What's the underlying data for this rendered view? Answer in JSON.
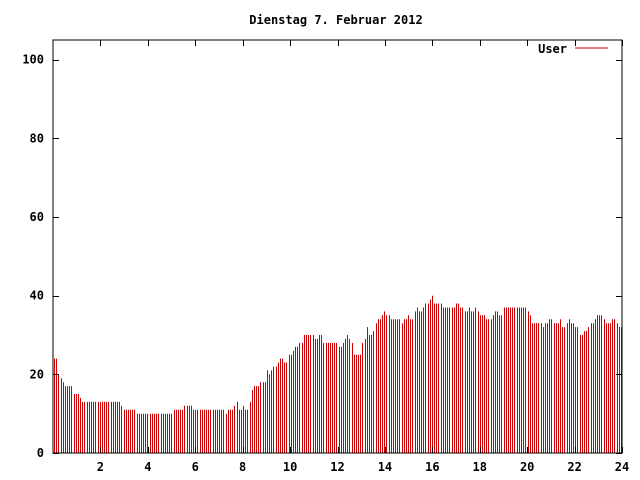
{
  "chart_data": {
    "type": "bar",
    "title": "Dienstag 7. Februar 2012",
    "xlabel": "",
    "ylabel": "",
    "xlim": [
      0,
      24
    ],
    "ylim": [
      0,
      105
    ],
    "grid": false,
    "legend_position": "top-right",
    "x_ticks": [
      "2",
      "4",
      "6",
      "8",
      "10",
      "12",
      "14",
      "16",
      "18",
      "20",
      "22",
      "24"
    ],
    "y_ticks": [
      "0",
      "20",
      "40",
      "60",
      "80",
      "100"
    ],
    "series": [
      {
        "name": "User",
        "color": "#cc0000",
        "values": [
          24,
          24,
          20,
          19,
          18,
          17,
          17,
          17,
          17,
          15,
          15,
          15,
          14,
          13,
          13,
          13,
          13,
          13,
          13,
          13,
          13,
          13,
          13,
          13,
          13,
          13,
          13,
          13,
          13,
          13,
          13,
          12,
          11,
          11,
          11,
          11,
          11,
          11,
          10,
          10,
          10,
          10,
          10,
          10,
          10,
          10,
          10,
          10,
          10,
          10,
          10,
          10,
          10,
          10,
          10,
          11,
          11,
          11,
          11,
          11,
          12,
          12,
          12,
          12,
          11,
          11,
          11,
          11,
          11,
          11,
          11,
          11,
          11,
          11,
          11,
          11,
          11,
          11,
          11,
          10,
          11,
          11,
          11,
          12,
          13,
          11,
          11,
          12,
          11,
          11,
          13,
          16,
          17,
          17,
          17,
          18,
          18,
          18,
          21,
          20,
          21,
          22,
          22,
          23,
          24,
          24,
          23,
          23,
          25,
          25,
          26,
          27,
          27,
          28,
          28,
          30,
          30,
          30,
          30,
          30,
          29,
          29,
          30,
          30,
          28,
          28,
          28,
          28,
          28,
          28,
          28,
          27,
          27,
          28,
          29,
          30,
          29,
          28,
          25,
          25,
          25,
          25,
          28,
          29,
          32,
          30,
          30,
          31,
          33,
          34,
          34,
          35,
          36,
          35,
          35,
          34,
          34,
          34,
          34,
          34,
          33,
          34,
          34,
          35,
          34,
          34,
          36,
          37,
          36,
          36,
          37,
          38,
          38,
          39,
          40,
          38,
          38,
          38,
          38,
          37,
          37,
          37,
          37,
          37,
          37,
          38,
          38,
          37,
          37,
          36,
          36,
          37,
          36,
          36,
          37,
          36,
          35,
          35,
          35,
          34,
          34,
          34,
          35,
          36,
          36,
          35,
          35,
          37,
          37,
          37,
          37,
          37,
          37,
          37,
          37,
          37,
          37,
          37,
          36,
          35,
          33,
          33,
          33,
          33,
          33,
          32,
          33,
          33,
          34,
          34,
          33,
          33,
          33,
          34,
          32,
          32,
          33,
          34,
          33,
          33,
          32,
          32,
          30,
          30,
          31,
          31,
          32,
          33,
          33,
          34,
          35,
          35,
          35,
          34,
          33,
          33,
          33,
          34,
          34,
          33,
          32,
          32
        ]
      }
    ]
  }
}
